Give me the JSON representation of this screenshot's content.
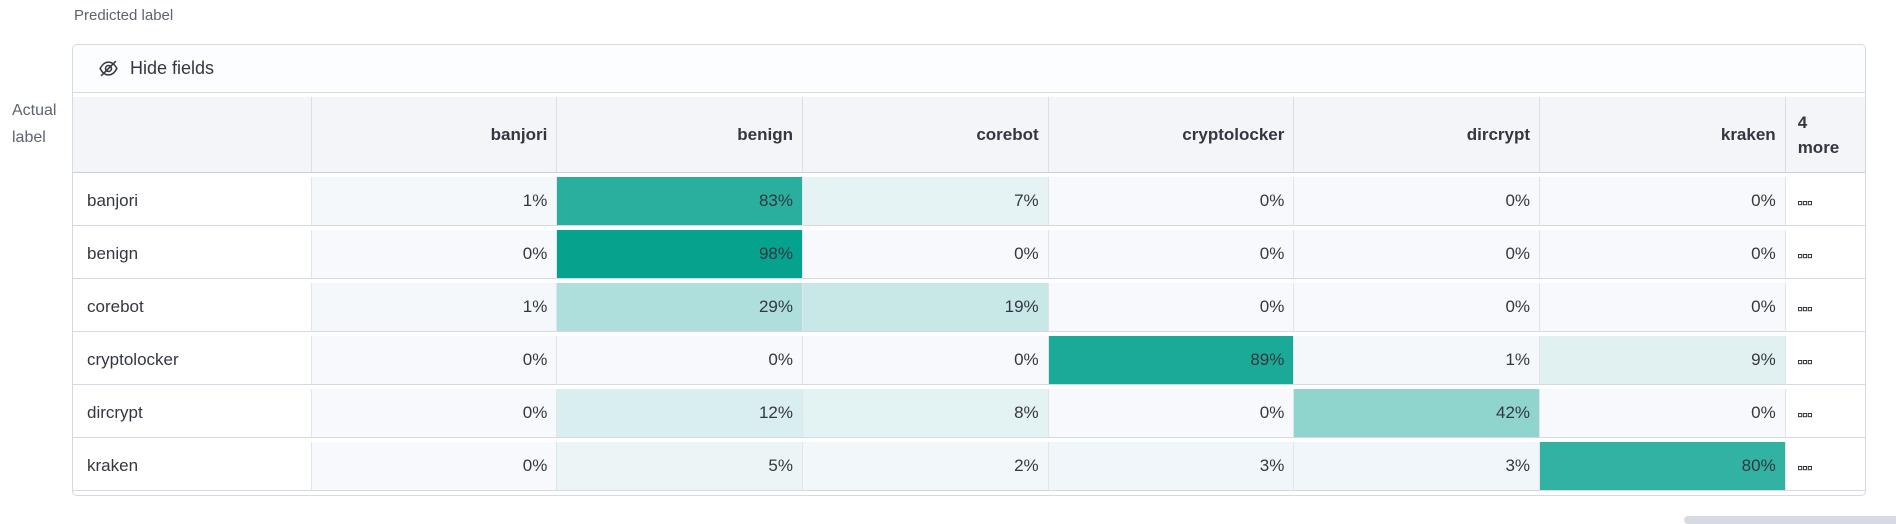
{
  "axes": {
    "predicted_label": "Predicted label",
    "actual_line1": "Actual",
    "actual_line2": "label"
  },
  "toolbar": {
    "hide_fields_label": "Hide fields",
    "icon": "eye-closed-icon"
  },
  "grid": {
    "columns": [
      "banjori",
      "benign",
      "corebot",
      "cryptolocker",
      "dircrypt",
      "kraken"
    ],
    "more_line1": "4",
    "more_line2": "more",
    "value_suffix": "%",
    "more_cell_icon": "boxes-horizontal-icon",
    "rows": [
      {
        "label": "banjori",
        "values": [
          1,
          83,
          7,
          0,
          0,
          0
        ]
      },
      {
        "label": "benign",
        "values": [
          0,
          98,
          0,
          0,
          0,
          0
        ]
      },
      {
        "label": "corebot",
        "values": [
          1,
          29,
          19,
          0,
          0,
          0
        ]
      },
      {
        "label": "cryptolocker",
        "values": [
          0,
          0,
          0,
          89,
          1,
          9
        ]
      },
      {
        "label": "dircrypt",
        "values": [
          0,
          12,
          8,
          0,
          42,
          0
        ]
      },
      {
        "label": "kraken",
        "values": [
          0,
          5,
          2,
          3,
          3,
          80
        ]
      }
    ]
  },
  "colors": {
    "heat_teal": "#00a08c",
    "cell_zero_bg": "#f7f9fc",
    "header_bg": "#f3f5f9",
    "panel_border": "#d3dae6",
    "text": "#343741",
    "axis_text": "#5d6470",
    "scrollbar_thumb": "#d6dae1"
  },
  "chart_data": {
    "type": "heatmap",
    "xlabel": "Predicted label",
    "ylabel": "Actual label",
    "x_labels": [
      "banjori",
      "benign",
      "corebot",
      "cryptolocker",
      "dircrypt",
      "kraken"
    ],
    "y_labels": [
      "banjori",
      "benign",
      "corebot",
      "cryptolocker",
      "dircrypt",
      "kraken"
    ],
    "values_percent": [
      [
        1,
        83,
        7,
        0,
        0,
        0
      ],
      [
        0,
        98,
        0,
        0,
        0,
        0
      ],
      [
        1,
        29,
        19,
        0,
        0,
        0
      ],
      [
        0,
        0,
        0,
        89,
        1,
        9
      ],
      [
        0,
        12,
        8,
        0,
        42,
        0
      ],
      [
        0,
        5,
        2,
        3,
        3,
        80
      ]
    ],
    "value_suffix": "%",
    "hidden_columns_label": "4 more",
    "color_scale": {
      "min_color": "#f7f9fc",
      "max_color": "#00a08c",
      "domain": [
        0,
        100
      ]
    },
    "legend": "none",
    "grid_lines": true
  }
}
